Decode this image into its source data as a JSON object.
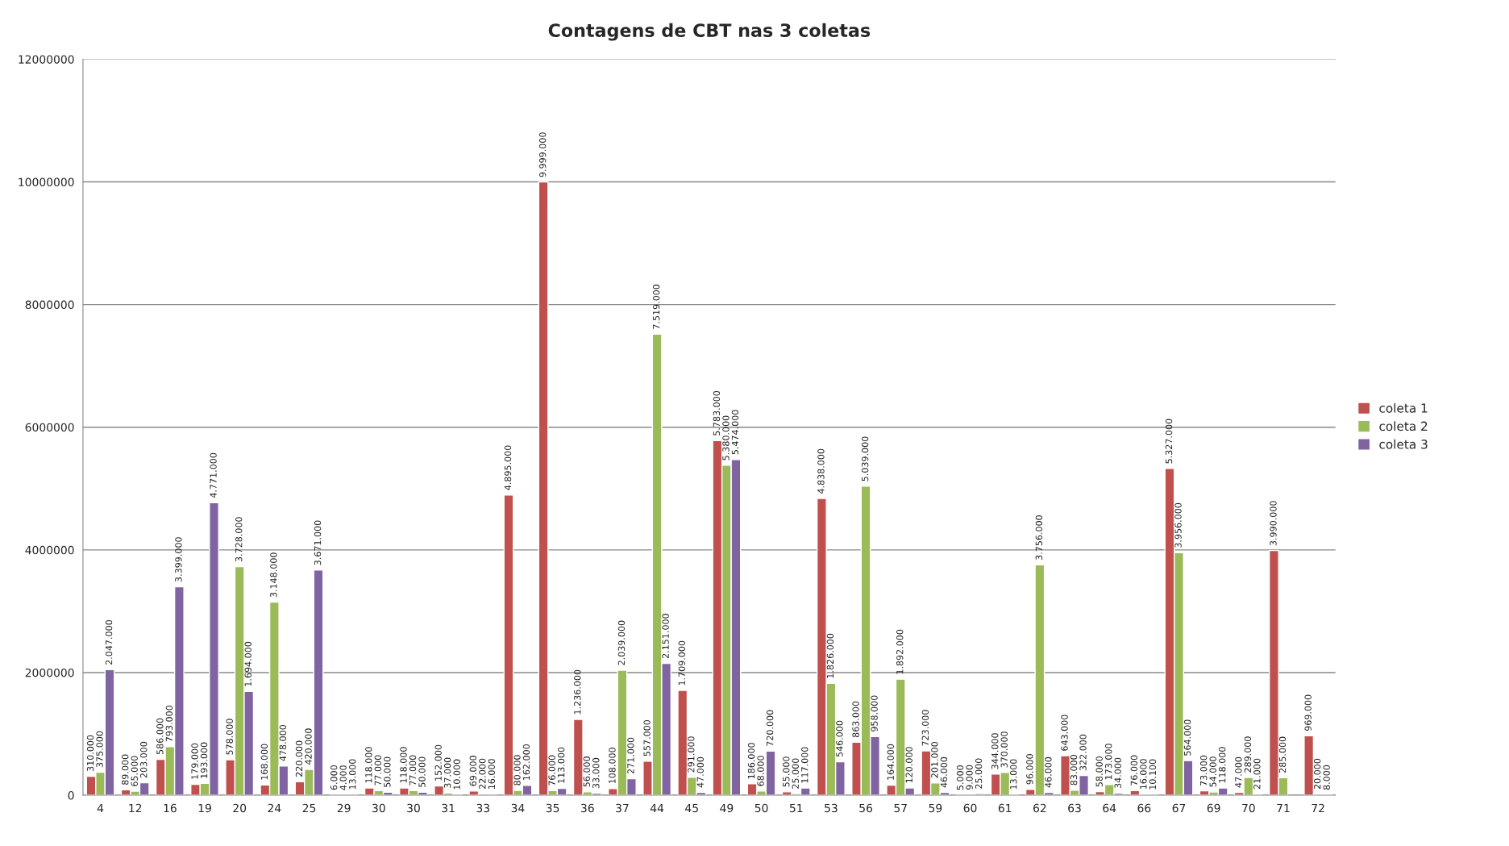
{
  "chart_data": {
    "type": "bar",
    "title": "Contagens de CBT nas 3 coletas",
    "categories": [
      "4",
      "12",
      "16",
      "19",
      "20",
      "24",
      "25",
      "29",
      "30",
      "30",
      "31",
      "33",
      "34",
      "35",
      "36",
      "37",
      "44",
      "45",
      "49",
      "50",
      "51",
      "53",
      "56",
      "57",
      "59",
      "60",
      "61",
      "62",
      "63",
      "64",
      "66",
      "67",
      "69",
      "70",
      "71",
      "72"
    ],
    "series": [
      {
        "name": "coleta 1",
        "color": "#c0504d",
        "values": [
          310000,
          89000,
          586000,
          179000,
          578000,
          168000,
          220000,
          6000,
          118000,
          118000,
          152000,
          69000,
          4895000,
          9999000,
          1236000,
          108000,
          557000,
          1709000,
          5783000,
          186000,
          55000,
          4838000,
          863000,
          164000,
          723000,
          5000,
          344000,
          96000,
          643000,
          58000,
          76000,
          5327000,
          73000,
          47000,
          3990000,
          969000
        ],
        "value_labels": [
          "310.000",
          "89.000",
          "586.000",
          "179.000",
          "578.000",
          "168.000",
          "220.000",
          "6.000",
          "118.000",
          "118.000",
          "152.000",
          "69.000",
          "4.895.000",
          "9.999.000",
          "1.236.000",
          "108.000",
          "557.000",
          "1.709.000",
          "5.783.000",
          "186.000",
          "55.000",
          "4.838.000",
          "863.000",
          "164.000",
          "723.000",
          "5.000",
          "344.000",
          "96.000",
          "643.000",
          "58.000",
          "76.000",
          "5.327.000",
          "73.000",
          "47.000",
          "3.990.000",
          "969.000"
        ]
      },
      {
        "name": "coleta 2",
        "color": "#9bbb59",
        "values": [
          375000,
          65000,
          793000,
          193000,
          3728000,
          3148000,
          420000,
          4000,
          77000,
          77000,
          37000,
          22000,
          80000,
          76000,
          56000,
          2039000,
          7519000,
          291000,
          5380000,
          68000,
          25000,
          1826000,
          5039000,
          1892000,
          201000,
          9000,
          370000,
          3756000,
          83000,
          173000,
          16000,
          3956000,
          54000,
          289000,
          285000,
          20000
        ],
        "value_labels": [
          "375.000",
          "65.000",
          "793.000",
          "193.000",
          "3.728.000",
          "3.148.000",
          "420.000",
          "4.000",
          "77.000",
          "77.000",
          "37.000",
          "22.000",
          "80.000",
          "76.000",
          "56.000",
          "2.039.000",
          "7.519.000",
          "291.000",
          "5.380.000",
          "68.000",
          "25.000",
          "1.826.000",
          "5.039.000",
          "1.892.000",
          "201.000",
          "9.000",
          "370.000",
          "3.756.000",
          "83.000",
          "173.000",
          "16.000",
          "3.956.000",
          "54.000",
          "289.000",
          "285.000",
          "20.000"
        ]
      },
      {
        "name": "coleta 3",
        "color": "#8064a2",
        "values": [
          2047000,
          203000,
          3399000,
          4771000,
          1694000,
          478000,
          3671000,
          13000,
          50000,
          50000,
          10000,
          16000,
          162000,
          113000,
          33000,
          271000,
          2151000,
          47000,
          5474000,
          720000,
          117000,
          546000,
          958000,
          120000,
          46000,
          25000,
          13000,
          46000,
          322000,
          34000,
          10100,
          564000,
          118000,
          21000,
          null,
          8000
        ],
        "value_labels": [
          "2.047.000",
          "203.000",
          "3.399.000",
          "4.771.000",
          "1.694.000",
          "478.000",
          "3.671.000",
          "13.000",
          "50.000",
          "50.000",
          "10.000",
          "16.000",
          "162.000",
          "113.000",
          "33.000",
          "271.000",
          "2.151.000",
          "47.000",
          "5.474.000",
          "720.000",
          "117.000",
          "546.000",
          "958.000",
          "120.000",
          "46.000",
          "25.000",
          "13.000",
          "46.000",
          "322.000",
          "34.000",
          "10.100",
          "564.000",
          "118.000",
          "21.000",
          null,
          "8.000"
        ]
      }
    ],
    "ylim": [
      0,
      12000000
    ],
    "yticks": [
      0,
      2000000,
      4000000,
      6000000,
      8000000,
      10000000,
      12000000
    ],
    "grid": "y",
    "legend": "right"
  }
}
